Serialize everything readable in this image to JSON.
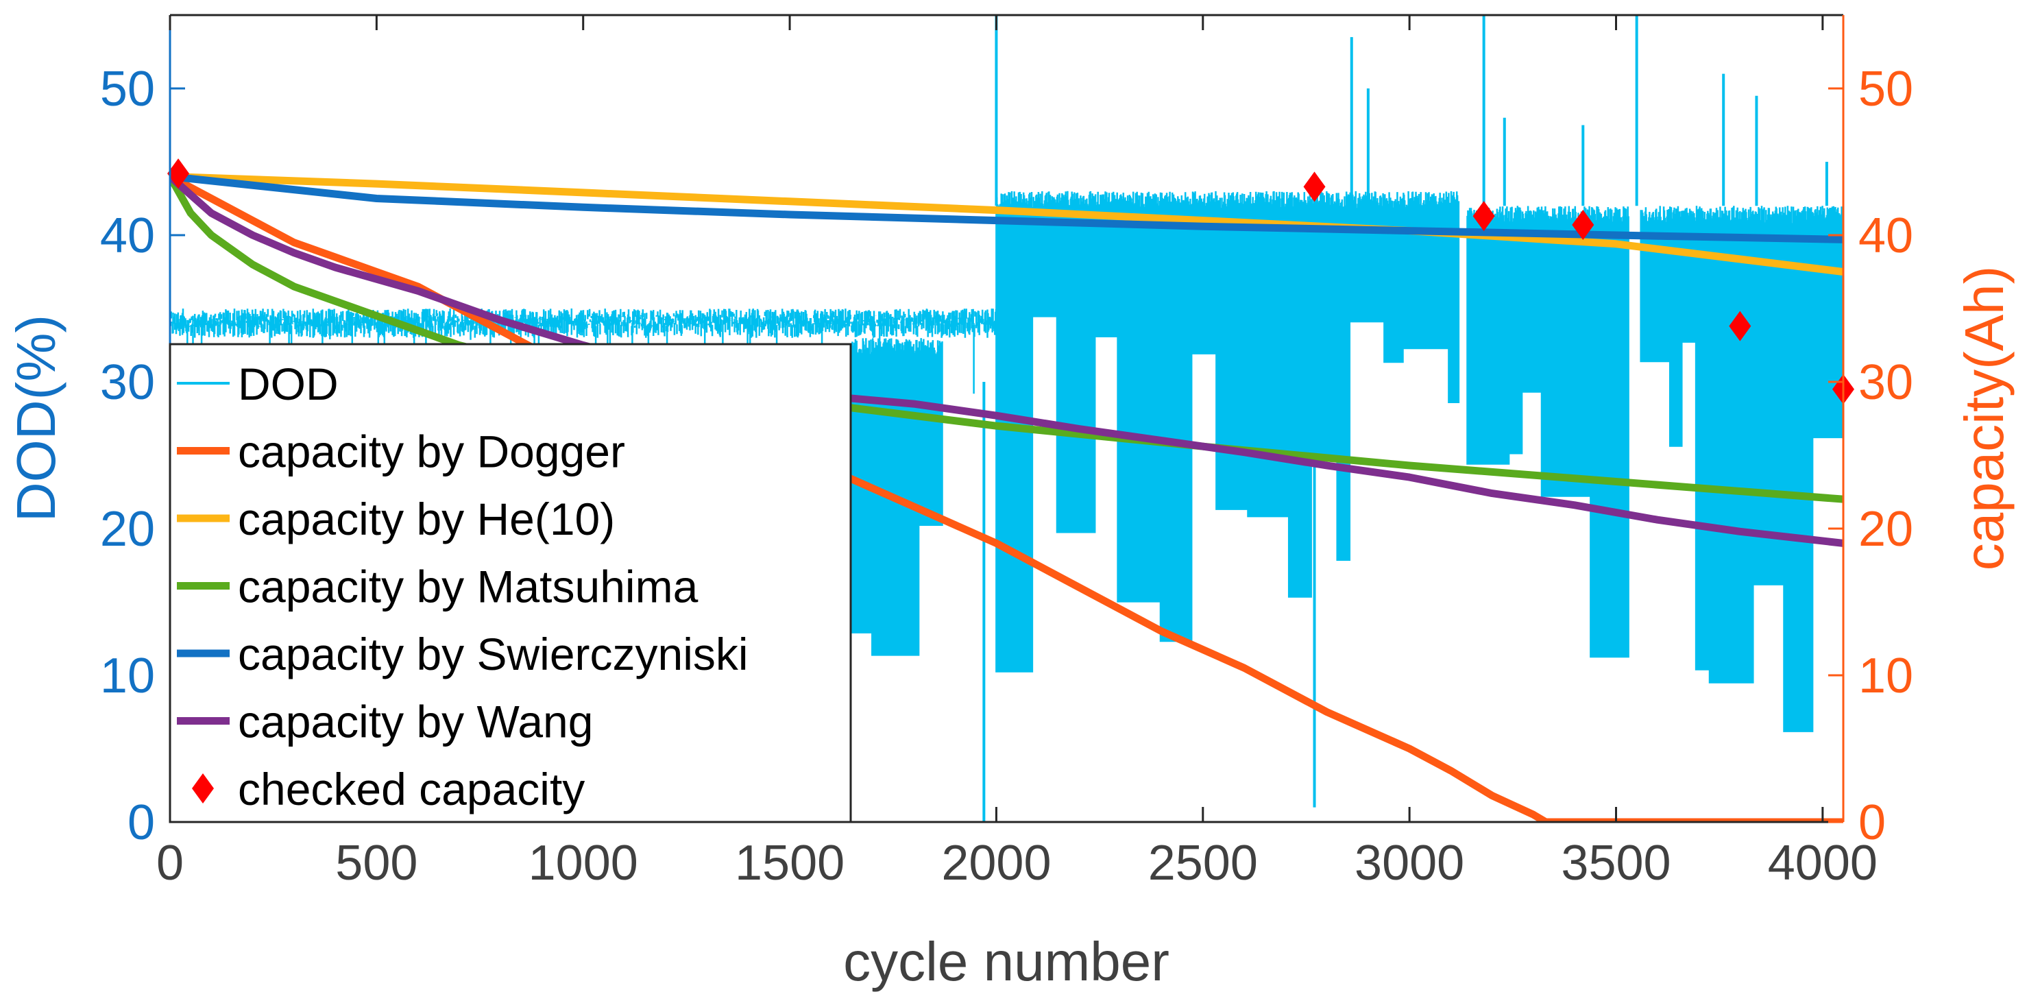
{
  "chart_data": {
    "type": "line",
    "xlabel": "cycle number",
    "ylabel_left": "DOD(%)",
    "ylabel_right": "capacity(Ah)",
    "xlim": [
      0,
      4050
    ],
    "ylim_left": [
      0,
      55
    ],
    "ylim_right": [
      0,
      55
    ],
    "x_ticks": [
      0,
      500,
      1000,
      1500,
      2000,
      2500,
      3000,
      3500,
      4000
    ],
    "y_ticks_left": [
      0,
      10,
      20,
      30,
      40,
      50
    ],
    "y_ticks_right": [
      0,
      10,
      20,
      30,
      40,
      50
    ],
    "grid": false,
    "legend_position": "lower-left",
    "colors": {
      "dod": "#00BFEF",
      "dogger": "#FF5A14",
      "he": "#FDB515",
      "matsuhima": "#5AAB1E",
      "swierczyniski": "#1271C4",
      "wang": "#7E2F8E",
      "checked": "#FF0000",
      "left_axis": "#1271C4",
      "right_axis": "#FF5A14",
      "text": "#404040"
    },
    "dod_series": {
      "name": "DOD",
      "segments": [
        {
          "x_range": [
            0,
            2000
          ],
          "upper": 35,
          "lower": 33,
          "dense": "steady"
        },
        {
          "x_range": [
            1650,
            1870
          ],
          "upper": 33,
          "lower": 7,
          "dense": "steps"
        },
        {
          "x_range": [
            2000,
            3120
          ],
          "upper": 43,
          "lower": 10,
          "dense": "steps"
        },
        {
          "x_range": [
            3140,
            3530
          ],
          "upper": 42,
          "lower": 11,
          "dense": "steps"
        },
        {
          "x_range": [
            3560,
            4050
          ],
          "upper": 42,
          "lower": 6,
          "dense": "steps"
        }
      ],
      "spikes": [
        {
          "x": 1970,
          "y": 0
        },
        {
          "x": 2000,
          "y": 55
        },
        {
          "x": 2770,
          "y": 1
        },
        {
          "x": 2860,
          "y": 53.5
        },
        {
          "x": 2900,
          "y": 50
        },
        {
          "x": 3180,
          "y": 55
        },
        {
          "x": 3230,
          "y": 48
        },
        {
          "x": 3420,
          "y": 47.5
        },
        {
          "x": 3550,
          "y": 55
        },
        {
          "x": 3760,
          "y": 51
        },
        {
          "x": 3840,
          "y": 49.5
        },
        {
          "x": 4010,
          "y": 45
        }
      ]
    },
    "series": [
      {
        "name": "capacity by Dogger",
        "x": [
          0,
          100,
          200,
          300,
          400,
          500,
          600,
          700,
          800,
          900,
          1000,
          1200,
          1400,
          1600,
          1800,
          2000,
          2200,
          2400,
          2600,
          2800,
          3000,
          3100,
          3200,
          3300,
          3330,
          4050
        ],
        "y": [
          44,
          42.5,
          41,
          39.5,
          38.5,
          37.5,
          36.5,
          35,
          33.5,
          32,
          31,
          28.5,
          26,
          24,
          21.5,
          19,
          16,
          13,
          10.5,
          7.5,
          5,
          3.5,
          1.8,
          0.5,
          0,
          0
        ]
      },
      {
        "name": "capacity by He(10)",
        "x": [
          0,
          500,
          1000,
          1500,
          2000,
          2500,
          3000,
          3500,
          4050
        ],
        "y": [
          44,
          43.5,
          42.9,
          42.3,
          41.7,
          41,
          40.3,
          39.4,
          37.5
        ]
      },
      {
        "name": "capacity by Matsuhima",
        "x": [
          0,
          50,
          100,
          200,
          300,
          400,
          500,
          600,
          700,
          800,
          1000,
          1200,
          1400,
          1600,
          2000,
          2500,
          3000,
          3500,
          4050
        ],
        "y": [
          44,
          41.5,
          40,
          38,
          36.5,
          35.5,
          34.5,
          33.5,
          32.5,
          31.8,
          30.8,
          30,
          29.2,
          28.4,
          27,
          25.6,
          24.3,
          23.2,
          22
        ]
      },
      {
        "name": "capacity by Swierczyniski",
        "x": [
          0,
          500,
          1000,
          1500,
          2000,
          2500,
          3000,
          3500,
          4050
        ],
        "y": [
          44,
          42.5,
          41.9,
          41.4,
          41,
          40.6,
          40.3,
          40,
          39.7
        ]
      },
      {
        "name": "capacity by Wang",
        "x": [
          0,
          100,
          200,
          300,
          400,
          500,
          600,
          700,
          800,
          1000,
          1200,
          1400,
          1600,
          1800,
          2000,
          2200,
          2400,
          2600,
          2800,
          3000,
          3200,
          3400,
          3600,
          3800,
          4050
        ],
        "y": [
          44,
          41.5,
          40,
          38.8,
          37.8,
          37,
          36.2,
          35.2,
          34.2,
          32.5,
          31,
          29.8,
          29,
          28.5,
          27.7,
          26.8,
          26,
          25.2,
          24.3,
          23.5,
          22.4,
          21.6,
          20.6,
          19.8,
          19
        ]
      }
    ],
    "checked_capacity": {
      "name": "checked capacity",
      "x": [
        20,
        2770,
        3180,
        3420,
        3800,
        4050
      ],
      "y": [
        44.2,
        43.3,
        41.3,
        40.7,
        33.8,
        29.5
      ]
    },
    "legend": [
      {
        "label": "DOD",
        "key": "dod",
        "style": "thin"
      },
      {
        "label": "capacity by Dogger",
        "key": "dogger",
        "style": "thick"
      },
      {
        "label": "capacity by He(10)",
        "key": "he",
        "style": "thick"
      },
      {
        "label": "capacity by Matsuhima",
        "key": "matsuhima",
        "style": "thick"
      },
      {
        "label": "capacity by Swierczyniski",
        "key": "swierczyniski",
        "style": "thick"
      },
      {
        "label": "capacity by Wang",
        "key": "wang",
        "style": "thick"
      },
      {
        "label": "checked capacity",
        "key": "checked",
        "style": "diamond"
      }
    ]
  }
}
